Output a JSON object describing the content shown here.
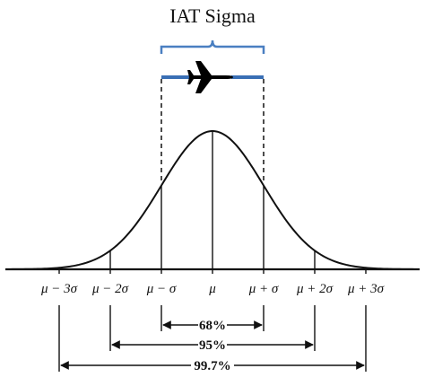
{
  "title": "IAT Sigma",
  "icon": "airplane-icon",
  "colors": {
    "bracket": "#4a7fc1",
    "bar": "#3a6fb5",
    "curve": "#111111",
    "ink": "#111111"
  },
  "axis_labels": [
    "μ − 3σ",
    "μ − 2σ",
    "μ − σ",
    "μ",
    "μ + σ",
    "μ + 2σ",
    "μ + 3σ"
  ],
  "intervals": [
    {
      "label": "68%",
      "sigma": 1
    },
    {
      "label": "95%",
      "sigma": 2
    },
    {
      "label": "99.7%",
      "sigma": 3
    }
  ]
}
